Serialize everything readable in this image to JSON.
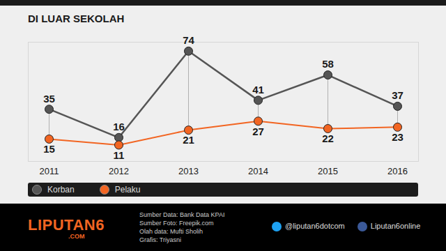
{
  "chart_data": {
    "type": "line",
    "title": "DI LUAR SEKOLAH",
    "categories": [
      "2011",
      "2012",
      "2013",
      "2014",
      "2015",
      "2016"
    ],
    "series": [
      {
        "name": "Korban",
        "color": "#555555",
        "values": [
          35,
          16,
          74,
          41,
          58,
          37
        ]
      },
      {
        "name": "Pelaku",
        "color": "#f26522",
        "values": [
          15,
          11,
          21,
          27,
          22,
          23
        ]
      }
    ],
    "ylim": [
      0,
      80
    ],
    "data_labels": true,
    "tick_labels": "x",
    "legend": "bottom",
    "marker": "circle"
  },
  "footer": {
    "brand": "LIPUTAN6",
    "brand_suffix": ".COM",
    "sources": [
      "Sumber Data: Bank Data KPAI",
      "Sumber Foto: Freepik.com",
      "Olah data: Mufti Sholih",
      "Grafis: Triyasni"
    ],
    "twitter": "@liputan6dotcom",
    "facebook": "Liputan6online"
  }
}
